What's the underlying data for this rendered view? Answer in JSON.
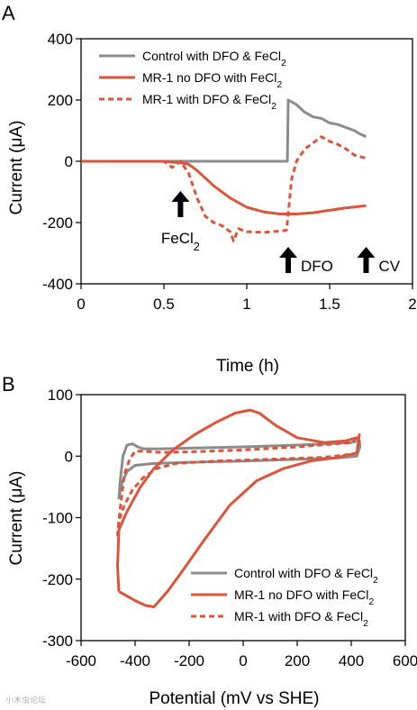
{
  "chart_data": [
    {
      "panel_label": "A",
      "type": "line",
      "xlabel": "Time (h)",
      "ylabel": "Current (μA)",
      "xlim": [
        0,
        2
      ],
      "ylim": [
        -400,
        400
      ],
      "xticks": [
        "0",
        "0.5",
        "1",
        "1.5",
        "2"
      ],
      "yticks": [
        "400",
        "200",
        "0",
        "-200",
        "-400"
      ],
      "legend_position": "top-right",
      "series": [
        {
          "name": "Control with DFO & FeCl2",
          "color": "#8c8c8c",
          "style": "solid",
          "points": [
            [
              0,
              0
            ],
            [
              0.5,
              0
            ],
            [
              1.0,
              0
            ],
            [
              1.245,
              0
            ],
            [
              1.25,
              200
            ],
            [
              1.3,
              185
            ],
            [
              1.35,
              160
            ],
            [
              1.4,
              145
            ],
            [
              1.45,
              140
            ],
            [
              1.5,
              125
            ],
            [
              1.55,
              120
            ],
            [
              1.6,
              110
            ],
            [
              1.65,
              100
            ],
            [
              1.68,
              90
            ],
            [
              1.72,
              80
            ]
          ]
        },
        {
          "name": "MR-1 no DFO with FeCl2",
          "color": "#d9553c",
          "style": "solid",
          "points": [
            [
              0,
              0
            ],
            [
              0.5,
              0
            ],
            [
              0.6,
              -5
            ],
            [
              0.65,
              -10
            ],
            [
              0.7,
              -30
            ],
            [
              0.8,
              -80
            ],
            [
              0.9,
              -120
            ],
            [
              1.0,
              -150
            ],
            [
              1.1,
              -165
            ],
            [
              1.2,
              -172
            ],
            [
              1.3,
              -172
            ],
            [
              1.4,
              -168
            ],
            [
              1.5,
              -160
            ],
            [
              1.6,
              -152
            ],
            [
              1.72,
              -145
            ]
          ]
        },
        {
          "name": "MR-1 with DFO & FeCl2",
          "color": "#d9553c",
          "style": "dashed",
          "points": [
            [
              0,
              0
            ],
            [
              0.5,
              0
            ],
            [
              0.55,
              -20
            ],
            [
              0.6,
              0
            ],
            [
              0.65,
              -40
            ],
            [
              0.7,
              -120
            ],
            [
              0.75,
              -180
            ],
            [
              0.8,
              -200
            ],
            [
              0.85,
              -210
            ],
            [
              0.9,
              -230
            ],
            [
              0.92,
              -260
            ],
            [
              0.95,
              -220
            ],
            [
              1.0,
              -230
            ],
            [
              1.1,
              -232
            ],
            [
              1.2,
              -228
            ],
            [
              1.24,
              -225
            ],
            [
              1.27,
              -60
            ],
            [
              1.3,
              0
            ],
            [
              1.35,
              40
            ],
            [
              1.4,
              60
            ],
            [
              1.45,
              80
            ],
            [
              1.5,
              65
            ],
            [
              1.55,
              55
            ],
            [
              1.6,
              40
            ],
            [
              1.65,
              20
            ],
            [
              1.72,
              10
            ]
          ]
        }
      ],
      "annotations": [
        {
          "text": "FeCl2",
          "x": 0.6
        },
        {
          "text": "DFO",
          "x": 1.25
        },
        {
          "text": "CV",
          "x": 1.72
        }
      ]
    },
    {
      "panel_label": "B",
      "type": "line",
      "xlabel": "Potential (mV vs SHE)",
      "ylabel": "Current (μA)",
      "xlim": [
        -600,
        600
      ],
      "ylim": [
        -300,
        100
      ],
      "xticks": [
        "-600",
        "-400",
        "-200",
        "0",
        "200",
        "400",
        "600"
      ],
      "yticks": [
        "100",
        "0",
        "-100",
        "-200",
        "-300"
      ],
      "legend_position": "bottom-right",
      "series": [
        {
          "name": "Control with DFO & FeCl2",
          "color": "#8c8c8c",
          "style": "solid",
          "points": [
            [
              -460,
              -70
            ],
            [
              -455,
              -40
            ],
            [
              -445,
              0
            ],
            [
              -430,
              18
            ],
            [
              -410,
              20
            ],
            [
              -390,
              15
            ],
            [
              -370,
              12
            ],
            [
              -300,
              12
            ],
            [
              -200,
              13
            ],
            [
              0,
              15
            ],
            [
              200,
              18
            ],
            [
              400,
              22
            ],
            [
              430,
              25
            ],
            [
              432,
              15
            ],
            [
              420,
              0
            ],
            [
              350,
              -3
            ],
            [
              200,
              -5
            ],
            [
              0,
              -8
            ],
            [
              -200,
              -10
            ],
            [
              -330,
              -12
            ],
            [
              -400,
              -15
            ],
            [
              -430,
              -25
            ],
            [
              -450,
              -45
            ],
            [
              -460,
              -70
            ]
          ]
        },
        {
          "name": "MR-1 no DFO with FeCl2",
          "color": "#d9553c",
          "style": "solid",
          "points": [
            [
              -460,
              -220
            ],
            [
              -440,
              -225
            ],
            [
              -400,
              -235
            ],
            [
              -360,
              -243
            ],
            [
              -330,
              -245
            ],
            [
              -280,
              -220
            ],
            [
              -230,
              -190
            ],
            [
              -150,
              -140
            ],
            [
              -50,
              -80
            ],
            [
              50,
              -40
            ],
            [
              150,
              -20
            ],
            [
              250,
              -8
            ],
            [
              350,
              -2
            ],
            [
              420,
              5
            ],
            [
              430,
              25
            ],
            [
              420,
              30
            ],
            [
              380,
              25
            ],
            [
              300,
              22
            ],
            [
              200,
              30
            ],
            [
              120,
              50
            ],
            [
              60,
              70
            ],
            [
              25,
              75
            ],
            [
              -30,
              70
            ],
            [
              -100,
              55
            ],
            [
              -180,
              35
            ],
            [
              -260,
              10
            ],
            [
              -330,
              -20
            ],
            [
              -380,
              -50
            ],
            [
              -430,
              -90
            ],
            [
              -460,
              -120
            ],
            [
              -465,
              -180
            ],
            [
              -460,
              -220
            ]
          ]
        },
        {
          "name": "MR-1 with DFO & FeCl2",
          "color": "#d9553c",
          "style": "dashed",
          "points": [
            [
              -465,
              -130
            ],
            [
              -455,
              -85
            ],
            [
              -440,
              -30
            ],
            [
              -420,
              -5
            ],
            [
              -400,
              8
            ],
            [
              -370,
              8
            ],
            [
              -300,
              6
            ],
            [
              -200,
              7
            ],
            [
              0,
              10
            ],
            [
              200,
              15
            ],
            [
              400,
              22
            ],
            [
              430,
              35
            ],
            [
              420,
              5
            ],
            [
              380,
              2
            ],
            [
              300,
              -2
            ],
            [
              100,
              -5
            ],
            [
              -100,
              -8
            ],
            [
              -250,
              -12
            ],
            [
              -320,
              -20
            ],
            [
              -370,
              -35
            ],
            [
              -410,
              -55
            ],
            [
              -440,
              -80
            ],
            [
              -460,
              -105
            ],
            [
              -465,
              -130
            ]
          ]
        }
      ]
    }
  ],
  "watermark": "小木虫论坛"
}
